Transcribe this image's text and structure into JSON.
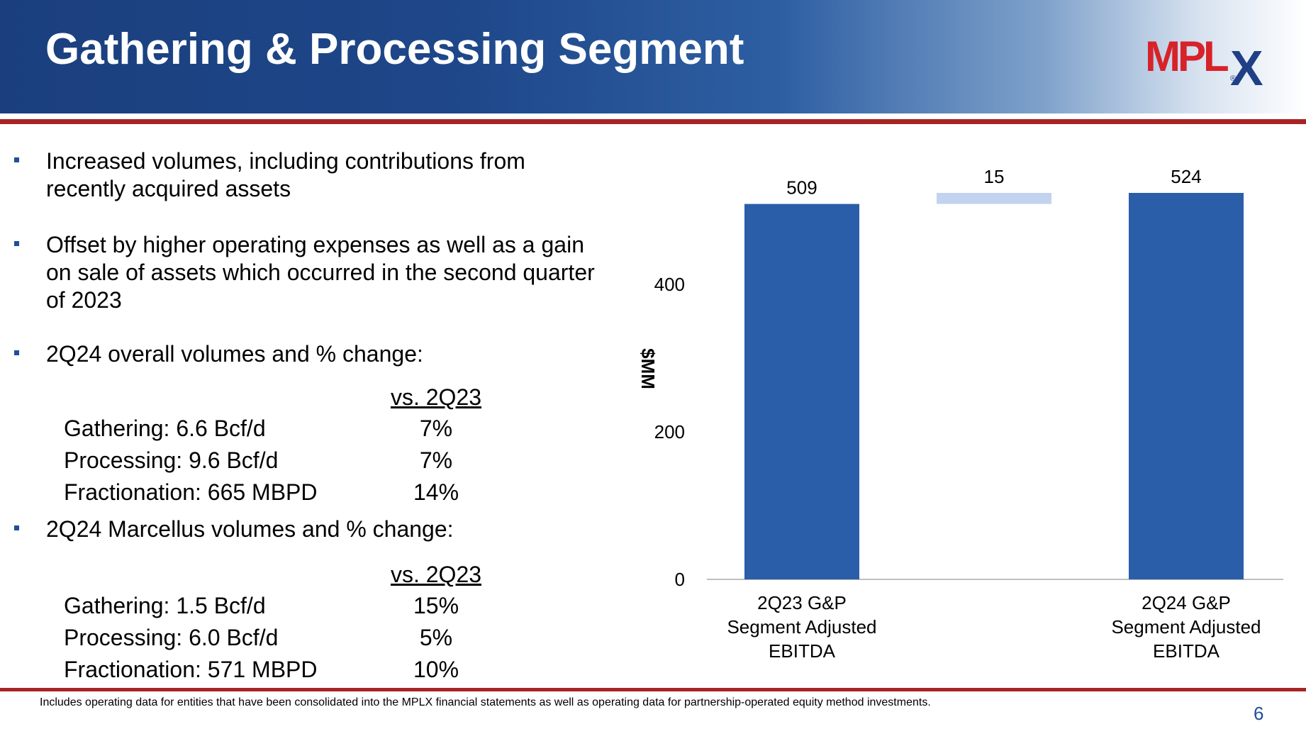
{
  "header": {
    "title": "Gathering & Processing Segment",
    "logo_text": "MPLX",
    "logo_reg": "®",
    "colors": {
      "dark_blue": "#1b3f7e",
      "red": "#d8222a",
      "navy": "#1f3f86"
    }
  },
  "bullets": [
    {
      "text": "Increased volumes, including contributions from recently acquired assets"
    },
    {
      "text": "Offset by higher operating expenses as well as a gain on sale of assets which occurred in the second quarter of 2023"
    },
    {
      "text": "2Q24 overall volumes and % change:"
    },
    {
      "text": "2Q24 Marcellus volumes and % change:"
    }
  ],
  "tables": [
    {
      "header": "vs. 2Q23",
      "rows": [
        {
          "label": "Gathering: 6.6 Bcf/d",
          "value": "7%"
        },
        {
          "label": "Processing: 9.6 Bcf/d",
          "value": "7%"
        },
        {
          "label": "Fractionation: 665 MBPD",
          "value": "14%"
        }
      ]
    },
    {
      "header": "vs. 2Q23",
      "rows": [
        {
          "label": "Gathering: 1.5 Bcf/d",
          "value": "15%"
        },
        {
          "label": "Processing: 6.0 Bcf/d",
          "value": "5%"
        },
        {
          "label": "Fractionation: 571 MBPD",
          "value": "10%"
        }
      ]
    }
  ],
  "chart_data": {
    "type": "bar",
    "categories": [
      "2Q23 G&P Segment Adjusted EBITDA",
      "",
      "2Q24 G&P Segment Adjusted EBITDA"
    ],
    "category_lines": [
      [
        "2Q23 G&P",
        "Segment Adjusted",
        "EBITDA"
      ],
      [],
      [
        "2Q24 G&P",
        "Segment Adjusted",
        "EBITDA"
      ]
    ],
    "bars": [
      {
        "kind": "total",
        "start": 0,
        "end": 509,
        "label": "509",
        "color": "#2a5ea8"
      },
      {
        "kind": "delta",
        "start": 509,
        "end": 524,
        "label": "15",
        "color": "#c2d3f0"
      },
      {
        "kind": "total",
        "start": 0,
        "end": 524,
        "label": "524",
        "color": "#2a5ea8"
      }
    ],
    "ylabel": "$MM",
    "yticks": [
      0,
      200,
      400
    ],
    "ylim": [
      0,
      524
    ],
    "grid": false,
    "axis_color": "#bfbfbf"
  },
  "footnote": "Includes operating data for entities that have been consolidated into the MPLX financial statements as well as operating data for partnership-operated equity method investments.",
  "page_number": "6"
}
